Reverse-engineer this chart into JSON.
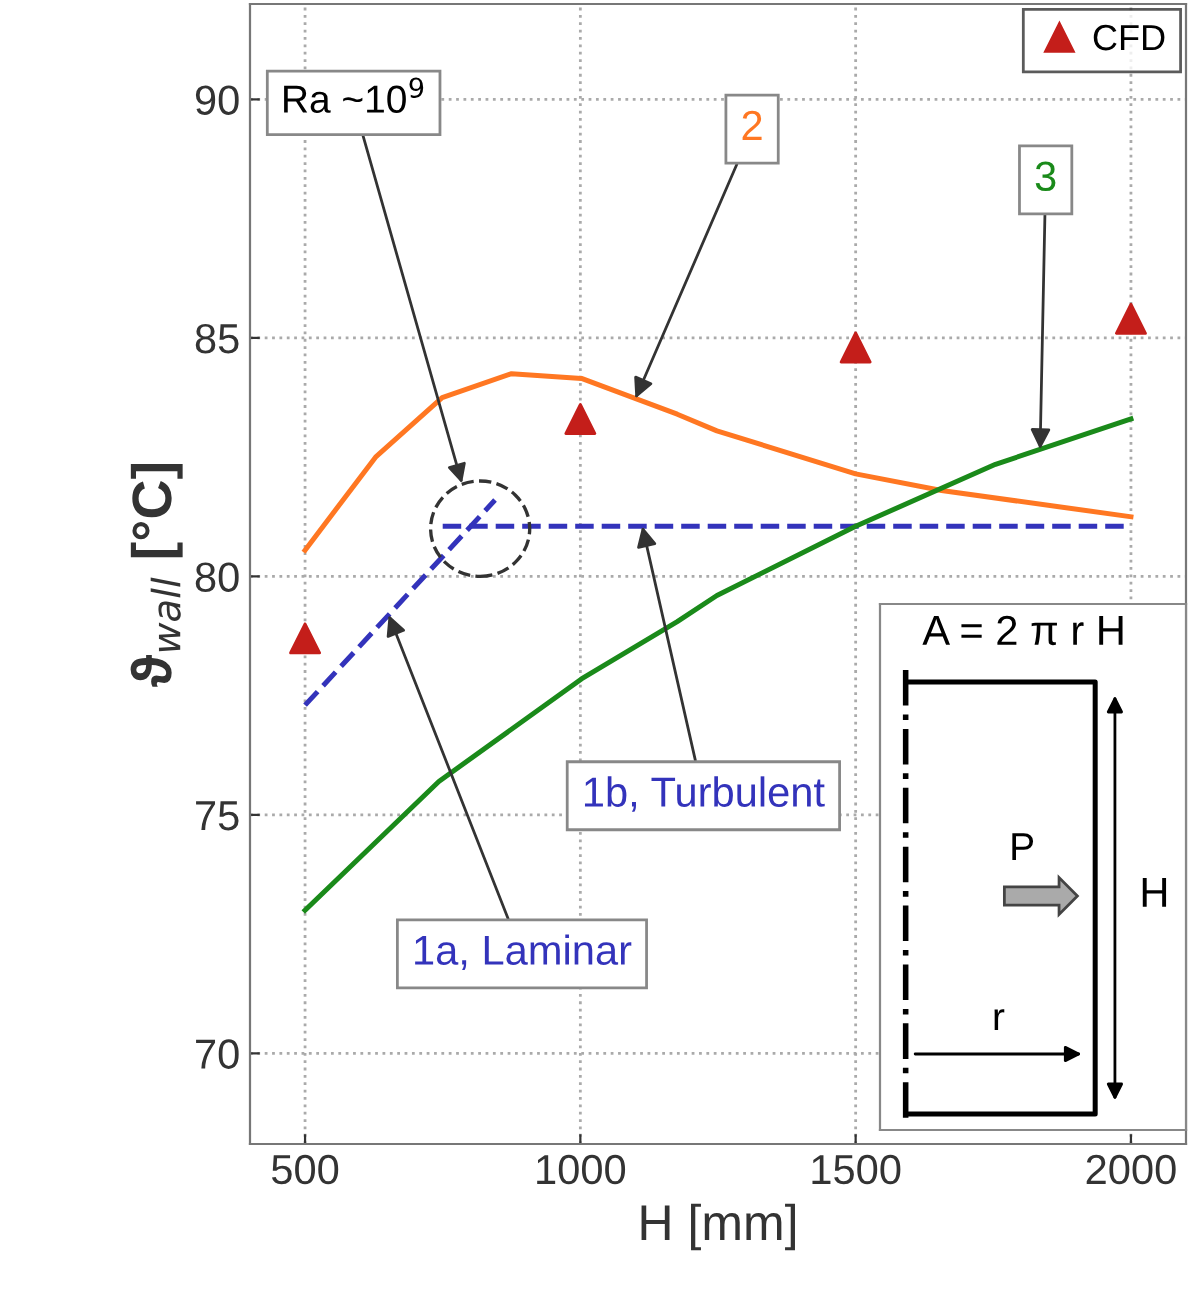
{
  "chart_data": {
    "type": "line",
    "xlabel": "H [mm]",
    "ylabel": "ϑ$_{wall}$ [°C]",
    "x": [
      500,
      628,
      749,
      875,
      1002,
      1176,
      1248,
      1500,
      1656,
      2000
    ],
    "series": [
      {
        "name": "1a, Laminar",
        "color": "#3333bb",
        "line_style": "dashed",
        "x": [
          500,
          845
        ],
        "values": [
          77.3,
          81.6
        ]
      },
      {
        "name": "1b, Turbulent",
        "color": "#3333bb",
        "line_style": "dashed",
        "x": [
          750,
          2000
        ],
        "values": [
          81.05,
          81.05
        ]
      },
      {
        "name": "2",
        "color": "#ff7722",
        "line_style": "solid",
        "values": [
          80.55,
          82.5,
          83.75,
          84.25,
          84.15,
          83.4,
          83.05,
          82.15,
          81.8,
          81.25
        ]
      },
      {
        "name": "3",
        "color": "#1a8a1a",
        "line_style": "solid",
        "x": [
          500,
          743,
          1002,
          1176,
          1248,
          1500,
          1754,
          2000
        ],
        "values": [
          73.0,
          75.7,
          77.85,
          79.05,
          79.6,
          81.05,
          82.35,
          83.3
        ]
      },
      {
        "name": "CFD",
        "type": "scatter",
        "marker": "triangle",
        "color": "#c41e1a",
        "x": [
          500,
          1000,
          1500,
          2000
        ],
        "values": [
          78.7,
          83.3,
          84.8,
          85.4
        ]
      }
    ],
    "xlim": [
      400,
      2100
    ],
    "ylim": [
      68.1,
      92.0
    ],
    "xticks": [
      500,
      1000,
      1500,
      2000
    ],
    "yticks": [
      70,
      75,
      80,
      85,
      90
    ],
    "grid": true,
    "legend": "top right",
    "annotations": [
      "Ra ~10$^{9}$",
      "A = 2 π r H",
      "P",
      "H",
      "r"
    ]
  }
}
